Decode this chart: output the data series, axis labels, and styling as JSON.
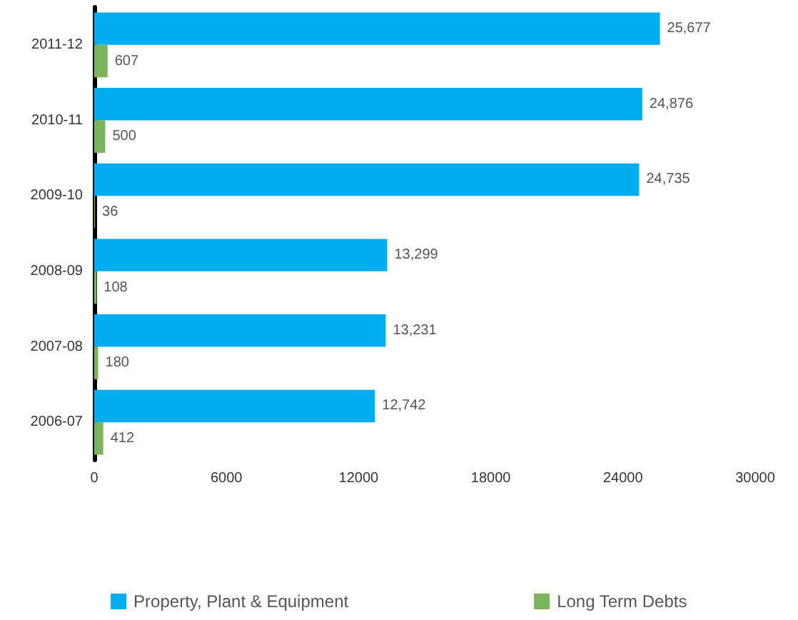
{
  "chart_data": {
    "type": "bar",
    "orientation": "horizontal",
    "categories": [
      "2011-12",
      "2010-11",
      "2009-10",
      "2008-09",
      "2007-08",
      "2006-07"
    ],
    "series": [
      {
        "name": "Property, Plant & Equipment",
        "color": "#00adef",
        "values": [
          25677,
          24876,
          24735,
          13299,
          13231,
          12742
        ],
        "value_labels": [
          "25,677",
          "24,876",
          "24,735",
          "13,299",
          "13,231",
          "12,742"
        ]
      },
      {
        "name": "Long Term Debts",
        "color": "#7ab55c",
        "values": [
          607,
          500,
          36,
          108,
          180,
          412
        ],
        "value_labels": [
          "607",
          "500",
          "36",
          "108",
          "180",
          "412"
        ]
      }
    ],
    "xlim": [
      0,
      30000
    ],
    "xticks": [
      0,
      6000,
      12000,
      18000,
      24000,
      30000
    ],
    "grid": false,
    "legend": "bottom"
  }
}
